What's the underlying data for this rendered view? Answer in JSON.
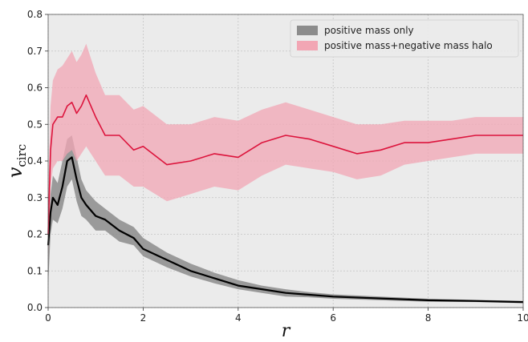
{
  "chart_data": {
    "type": "line",
    "xlabel": "r",
    "ylabel_main": "v",
    "ylabel_sub": "circ",
    "xlim": [
      0,
      10
    ],
    "ylim": [
      0,
      0.8
    ],
    "x_ticks": [
      0,
      2,
      4,
      6,
      8,
      10
    ],
    "y_ticks": [
      0.0,
      0.1,
      0.2,
      0.3,
      0.4,
      0.5,
      0.6,
      0.7,
      0.8
    ],
    "x_tick_labels": [
      "0",
      "2",
      "4",
      "6",
      "8",
      "10"
    ],
    "y_tick_labels": [
      "0.0",
      "0.1",
      "0.2",
      "0.3",
      "0.4",
      "0.5",
      "0.6",
      "0.7",
      "0.8"
    ],
    "grid": true,
    "legend_position": "top-right",
    "series": [
      {
        "name": "positive mass only",
        "line_color": "#000000",
        "band_color": "#8c8c8c",
        "x": [
          0.0,
          0.05,
          0.1,
          0.2,
          0.3,
          0.4,
          0.5,
          0.6,
          0.7,
          0.8,
          1.0,
          1.2,
          1.5,
          1.8,
          2.0,
          2.5,
          3.0,
          3.5,
          4.0,
          4.5,
          5.0,
          5.5,
          6.0,
          7.0,
          8.0,
          9.0,
          10.0
        ],
        "y": [
          0.17,
          0.26,
          0.3,
          0.28,
          0.33,
          0.4,
          0.41,
          0.35,
          0.3,
          0.28,
          0.25,
          0.24,
          0.21,
          0.19,
          0.16,
          0.13,
          0.1,
          0.08,
          0.06,
          0.05,
          0.04,
          0.035,
          0.03,
          0.025,
          0.02,
          0.018,
          0.015
        ],
        "upper": [
          0.2,
          0.31,
          0.36,
          0.34,
          0.4,
          0.46,
          0.47,
          0.41,
          0.35,
          0.32,
          0.29,
          0.27,
          0.24,
          0.22,
          0.19,
          0.15,
          0.12,
          0.095,
          0.075,
          0.06,
          0.05,
          0.042,
          0.036,
          0.03,
          0.024,
          0.021,
          0.018
        ],
        "lower": [
          0.06,
          0.2,
          0.24,
          0.23,
          0.27,
          0.33,
          0.35,
          0.29,
          0.25,
          0.24,
          0.21,
          0.21,
          0.18,
          0.17,
          0.14,
          0.11,
          0.085,
          0.066,
          0.05,
          0.04,
          0.03,
          0.028,
          0.024,
          0.02,
          0.016,
          0.015,
          0.012
        ]
      },
      {
        "name": "positive mass+negative mass halo",
        "line_color": "#dc143c",
        "band_color": "#f2a6b4",
        "x": [
          0.0,
          0.05,
          0.1,
          0.2,
          0.3,
          0.4,
          0.5,
          0.6,
          0.7,
          0.8,
          1.0,
          1.2,
          1.5,
          1.8,
          2.0,
          2.5,
          3.0,
          3.5,
          4.0,
          4.5,
          5.0,
          5.5,
          6.0,
          6.5,
          7.0,
          7.5,
          8.0,
          8.5,
          9.0,
          9.5,
          10.0
        ],
        "y": [
          0.2,
          0.43,
          0.5,
          0.52,
          0.52,
          0.55,
          0.56,
          0.53,
          0.55,
          0.58,
          0.52,
          0.47,
          0.47,
          0.43,
          0.44,
          0.39,
          0.4,
          0.42,
          0.41,
          0.45,
          0.47,
          0.46,
          0.44,
          0.42,
          0.43,
          0.45,
          0.45,
          0.46,
          0.47,
          0.47,
          0.47
        ],
        "upper": [
          0.3,
          0.55,
          0.62,
          0.65,
          0.66,
          0.68,
          0.7,
          0.67,
          0.69,
          0.72,
          0.64,
          0.58,
          0.58,
          0.54,
          0.55,
          0.5,
          0.5,
          0.52,
          0.51,
          0.54,
          0.56,
          0.54,
          0.52,
          0.5,
          0.5,
          0.51,
          0.51,
          0.51,
          0.52,
          0.52,
          0.52
        ],
        "lower": [
          0.12,
          0.33,
          0.38,
          0.4,
          0.4,
          0.42,
          0.43,
          0.4,
          0.42,
          0.44,
          0.4,
          0.36,
          0.36,
          0.33,
          0.33,
          0.29,
          0.31,
          0.33,
          0.32,
          0.36,
          0.39,
          0.38,
          0.37,
          0.35,
          0.36,
          0.39,
          0.4,
          0.41,
          0.42,
          0.42,
          0.42
        ]
      }
    ]
  }
}
